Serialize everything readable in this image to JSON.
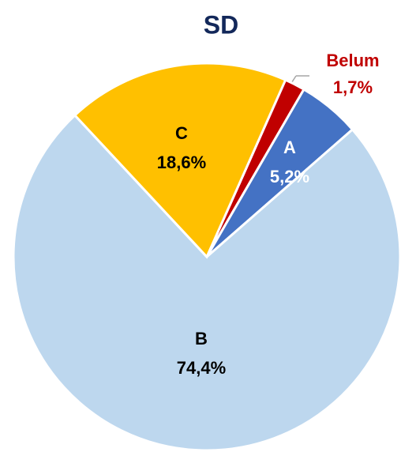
{
  "chart_data": {
    "type": "pie",
    "title": "SD",
    "categories": [
      "Belum",
      "A",
      "B",
      "C"
    ],
    "values": [
      1.7,
      5.2,
      74.4,
      18.6
    ],
    "value_labels": [
      "1,7%",
      "5,2%",
      "74,4%",
      "18,6%"
    ],
    "colors": [
      "#c00000",
      "#4472c4",
      "#bdd7ee",
      "#ffc000"
    ],
    "label_colors": [
      "#c00000",
      "#ffffff",
      "#000000",
      "#000000"
    ]
  }
}
